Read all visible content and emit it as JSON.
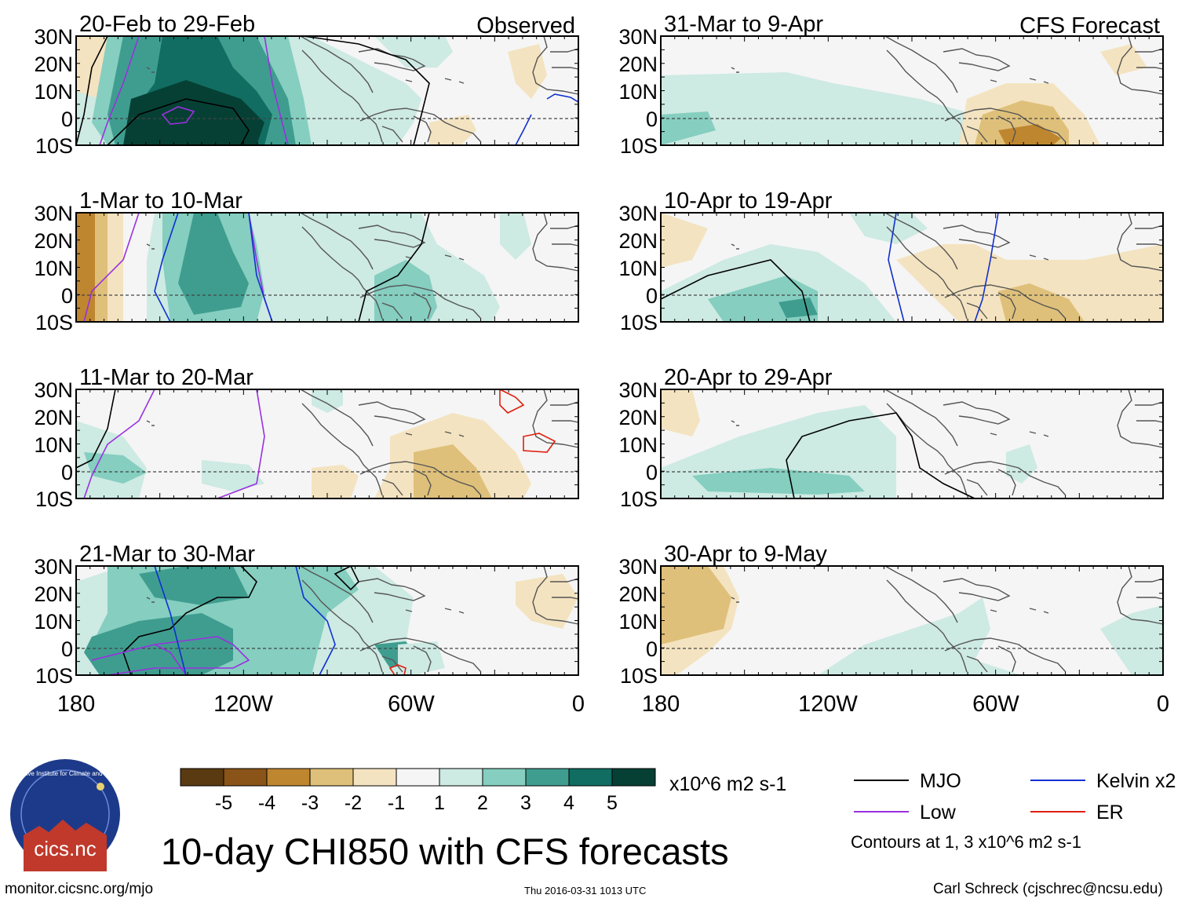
{
  "title": "10-day CHI850 with CFS forecasts",
  "units_label": "x10^6 m2 s-1",
  "contour_note": "Contours at 1, 3 x10^6 m2 s-1",
  "footer": {
    "url": "monitor.cicsnc.org/mjo",
    "timestamp": "Thu 2016-03-31 1013 UTC",
    "author": "Carl Schreck (cjschrec@ncsu.edu)"
  },
  "logo": {
    "text": "cics.nc",
    "ring_text": "Cooperative Institute for Climate and Satellites"
  },
  "columns": [
    {
      "label": "Observed"
    },
    {
      "label": "CFS Forecast"
    }
  ],
  "panels": [
    {
      "period": "20-Feb to 29-Feb"
    },
    {
      "period": "31-Mar to 9-Apr"
    },
    {
      "period": "1-Mar to 10-Mar"
    },
    {
      "period": "10-Apr to 19-Apr"
    },
    {
      "period": "11-Mar to 20-Mar"
    },
    {
      "period": "20-Apr to 29-Apr"
    },
    {
      "period": "21-Mar to 30-Mar"
    },
    {
      "period": "30-Apr to 9-May"
    }
  ],
  "lat_labels": [
    "30N",
    "20N",
    "10N",
    "0",
    "10S"
  ],
  "lon_labels": [
    "180",
    "120W",
    "60W",
    "0"
  ],
  "colorbar": {
    "colors": [
      "#5a3a10",
      "#8a5318",
      "#bf8630",
      "#dfc07a",
      "#f4e3c0",
      "#f5f5f5",
      "#cdeae3",
      "#85cec0",
      "#3f9d8f",
      "#116d62",
      "#064034"
    ],
    "labels": [
      "-5",
      "-4",
      "-3",
      "-2",
      "-1",
      "1",
      "2",
      "3",
      "4",
      "5"
    ]
  },
  "legend": [
    {
      "name": "MJO",
      "color": "#000000"
    },
    {
      "name": "Kelvin x2",
      "color": "#1030d0"
    },
    {
      "name": "Low",
      "color": "#9a30e0"
    },
    {
      "name": "ER",
      "color": "#e02010"
    }
  ]
}
